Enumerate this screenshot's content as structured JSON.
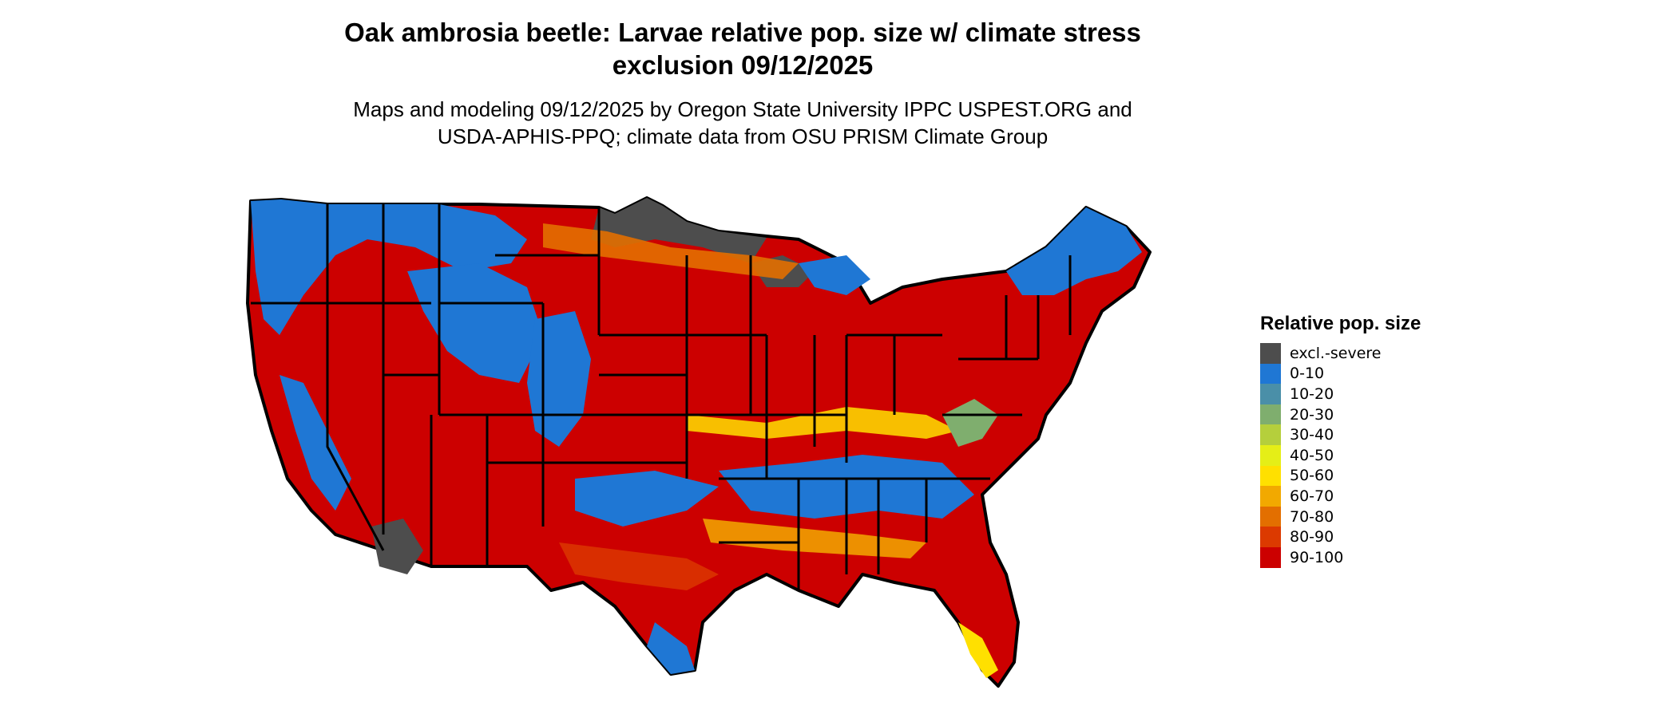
{
  "title_line1": "Oak ambrosia beetle: Larvae relative pop. size w/ climate stress",
  "title_line2": "exclusion 09/12/2025",
  "subtitle_line1": "Maps and modeling 09/12/2025 by Oregon State University IPPC USPEST.ORG and",
  "subtitle_line2": "USDA-APHIS-PPQ; climate data from OSU PRISM Climate Group",
  "legend": {
    "title": "Relative pop. size",
    "items": [
      {
        "label": "excl.-severe",
        "color": "#4d4d4d"
      },
      {
        "label": "0-10",
        "color": "#1f77d4"
      },
      {
        "label": "10-20",
        "color": "#4a8fa8"
      },
      {
        "label": "20-30",
        "color": "#7fae6e"
      },
      {
        "label": "30-40",
        "color": "#b5cf3c"
      },
      {
        "label": "40-50",
        "color": "#e5ee17"
      },
      {
        "label": "50-60",
        "color": "#ffe000"
      },
      {
        "label": "60-70",
        "color": "#f2a900"
      },
      {
        "label": "70-80",
        "color": "#e36f00"
      },
      {
        "label": "80-90",
        "color": "#dc3a00"
      },
      {
        "label": "90-100",
        "color": "#cc0000"
      }
    ]
  }
}
